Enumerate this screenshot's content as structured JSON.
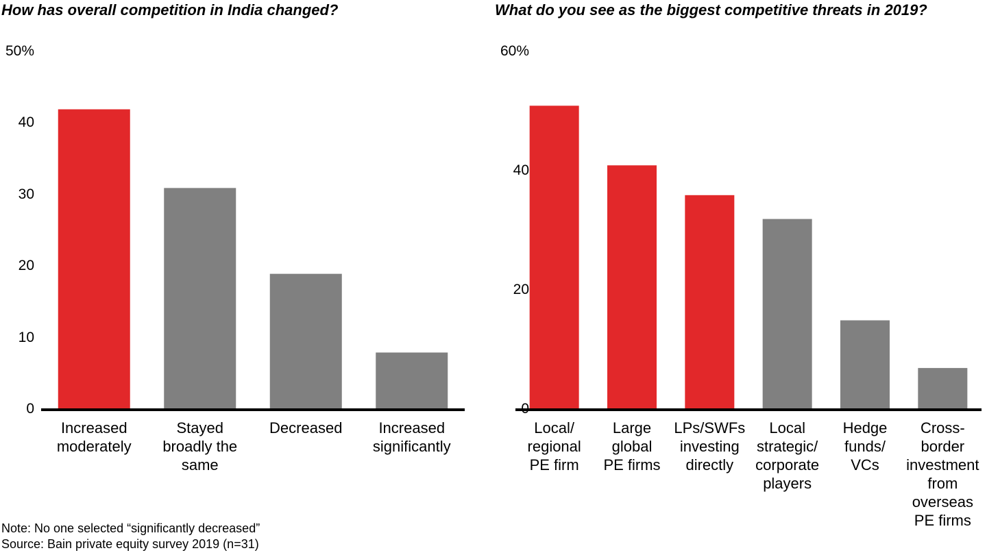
{
  "chart_data": [
    {
      "type": "bar",
      "title": "How has overall competition in India changed?",
      "categories": [
        "Increased\nmoderately",
        "Stayed\nbroadly the\nsame",
        "Decreased",
        "Increased\nsignificantly"
      ],
      "values": [
        42,
        31,
        19,
        8
      ],
      "colors": [
        "#e2282a",
        "#808080",
        "#808080",
        "#808080"
      ],
      "ylim": [
        0,
        50
      ],
      "yticks": [
        0,
        10,
        20,
        30,
        40,
        {
          "value": 50,
          "label": "50%"
        }
      ],
      "grid": false
    },
    {
      "type": "bar",
      "title": "What do you see as the biggest competitive threats in 2019?",
      "categories": [
        "Local/\nregional\nPE firm",
        "Large\nglobal\nPE firms",
        "LPs/SWFs\ninvesting\ndirectly",
        "Local\nstrategic/\ncorporate\nplayers",
        "Hedge\nfunds/\nVCs",
        "Cross-\nborder\ninvestment\nfrom\noverseas\nPE firms"
      ],
      "values": [
        51,
        41,
        36,
        32,
        15,
        7
      ],
      "colors": [
        "#e2282a",
        "#e2282a",
        "#e2282a",
        "#808080",
        "#808080",
        "#808080"
      ],
      "ylim": [
        0,
        60
      ],
      "yticks": [
        0,
        20,
        40,
        {
          "value": 60,
          "label": "60%"
        }
      ],
      "grid": false
    }
  ],
  "notes": [
    "Note: No one selected “significantly decreased”",
    "Source: Bain private equity survey 2019 (n=31)"
  ]
}
